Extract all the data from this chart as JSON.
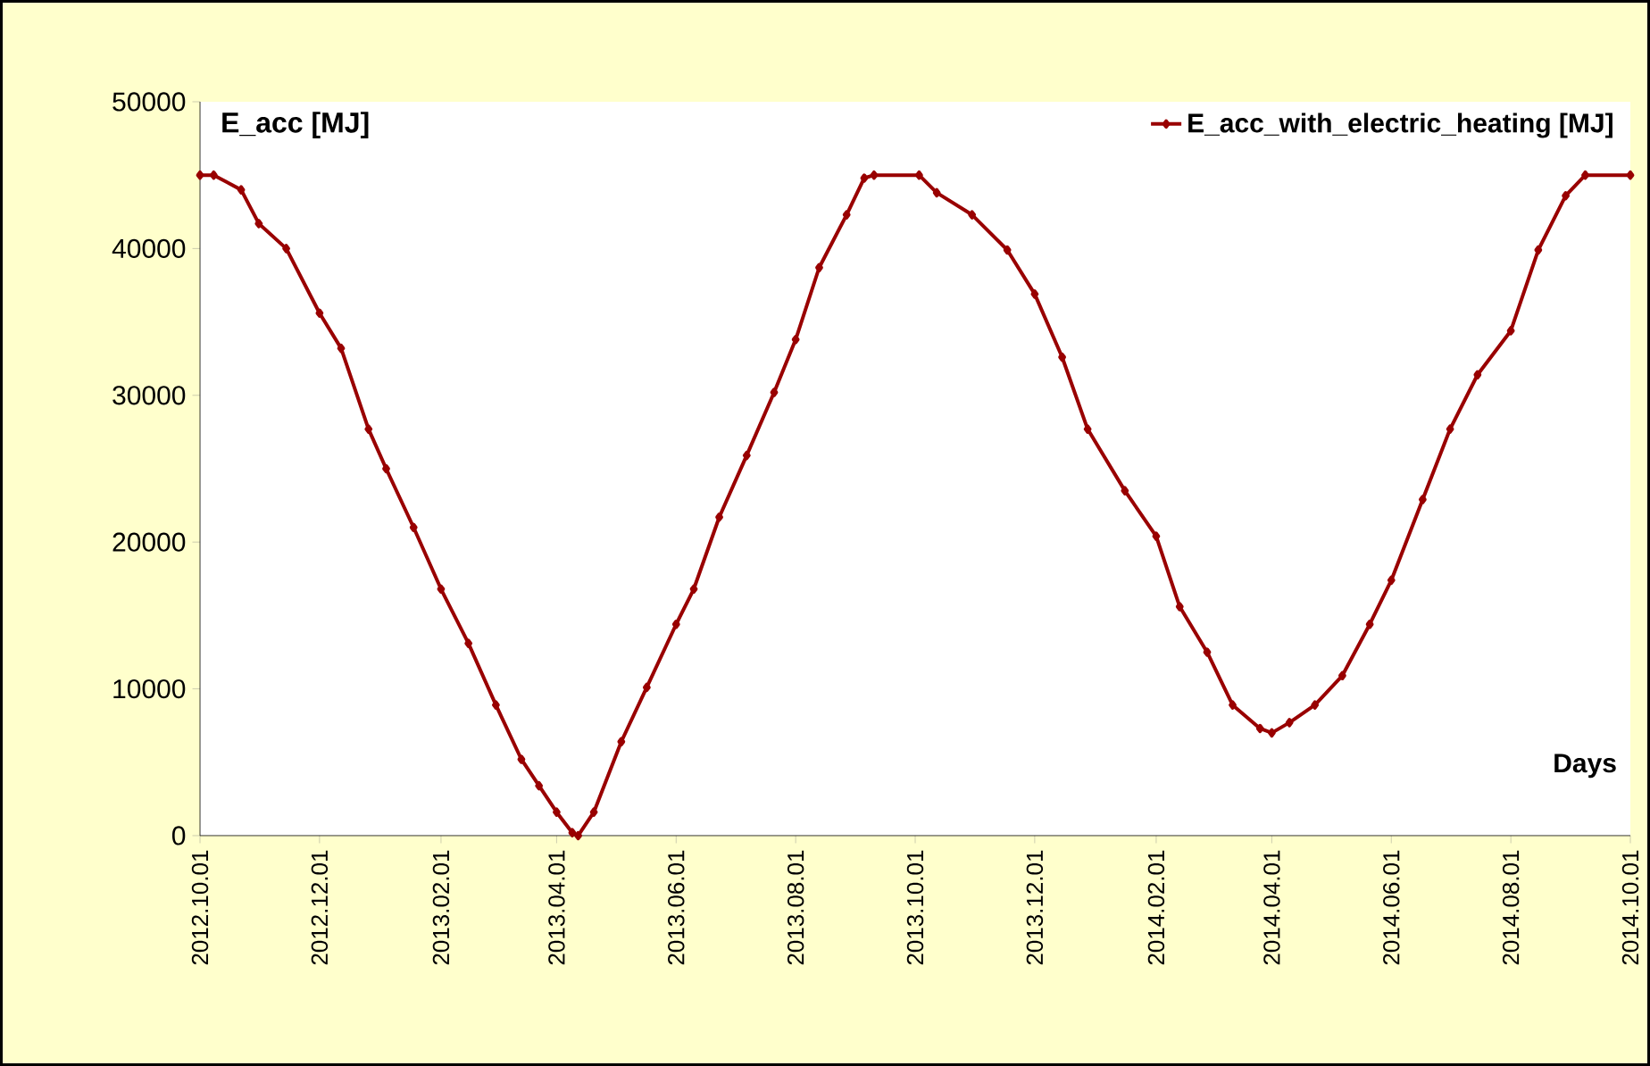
{
  "chart_data": {
    "type": "line",
    "ylabel": "E_acc [MJ]",
    "xlabel": "Days",
    "x": [
      "2012-10-01",
      "2012-10-08",
      "2012-10-22",
      "2012-10-31",
      "2012-11-14",
      "2012-12-01",
      "2012-12-12",
      "2012-12-26",
      "2013-01-04",
      "2013-01-18",
      "2013-02-01",
      "2013-02-15",
      "2013-03-01",
      "2013-03-14",
      "2013-03-23",
      "2013-04-01",
      "2013-04-09",
      "2013-04-12",
      "2013-04-20",
      "2013-05-04",
      "2013-05-17",
      "2013-06-01",
      "2013-06-10",
      "2013-06-23",
      "2013-07-07",
      "2013-07-21",
      "2013-08-01",
      "2013-08-13",
      "2013-08-27",
      "2013-09-05",
      "2013-09-10",
      "2013-10-03",
      "2013-10-12",
      "2013-10-30",
      "2013-11-17",
      "2013-12-01",
      "2013-12-15",
      "2013-12-28",
      "2014-01-16",
      "2014-02-01",
      "2014-02-13",
      "2014-02-27",
      "2014-03-12",
      "2014-03-26",
      "2014-04-01",
      "2014-04-10",
      "2014-04-23",
      "2014-05-07",
      "2014-05-21",
      "2014-06-01",
      "2014-06-17",
      "2014-07-01",
      "2014-07-15",
      "2014-08-01",
      "2014-08-15",
      "2014-08-29",
      "2014-09-08",
      "2014-10-01"
    ],
    "series": [
      {
        "name": "E_acc_with_electric_heating  [MJ]",
        "color": "#990000",
        "values": [
          45000,
          45000,
          44000,
          41700,
          40000,
          35600,
          33200,
          27700,
          25000,
          21000,
          16800,
          13100,
          8900,
          5200,
          3400,
          1600,
          200,
          0,
          1600,
          6400,
          10100,
          14400,
          16800,
          21700,
          25900,
          30200,
          33800,
          38700,
          42300,
          44800,
          45000,
          45000,
          43800,
          42300,
          39900,
          36900,
          32600,
          27700,
          23500,
          20400,
          15600,
          12500,
          8900,
          7300,
          7000,
          7700,
          8900,
          10900,
          14400,
          17400,
          22900,
          27700,
          31400,
          34400,
          39900,
          43600,
          45000,
          45000
        ]
      }
    ],
    "xlim": [
      "2012-10-01",
      "2014-10-01"
    ],
    "xticks": [
      {
        "value": "2012-10-01",
        "label": "2012.10.01"
      },
      {
        "value": "2012-12-01",
        "label": "2012.12.01"
      },
      {
        "value": "2013-02-01",
        "label": "2013.02.01"
      },
      {
        "value": "2013-04-01",
        "label": "2013.04.01"
      },
      {
        "value": "2013-06-01",
        "label": "2013.06.01"
      },
      {
        "value": "2013-08-01",
        "label": "2013.08.01"
      },
      {
        "value": "2013-10-01",
        "label": "2013.10.01"
      },
      {
        "value": "2013-12-01",
        "label": "2013.12.01"
      },
      {
        "value": "2014-02-01",
        "label": "2014.02.01"
      },
      {
        "value": "2014-04-01",
        "label": "2014.04.01"
      },
      {
        "value": "2014-06-01",
        "label": "2014.06.01"
      },
      {
        "value": "2014-08-01",
        "label": "2014.08.01"
      },
      {
        "value": "2014-10-01",
        "label": "2014.10.01"
      }
    ],
    "ylim": [
      0,
      50000
    ],
    "yticks": [
      0,
      10000,
      20000,
      30000,
      40000,
      50000
    ],
    "grid": false,
    "legend": "top right",
    "marker": "diamond",
    "line_style": "solid"
  }
}
